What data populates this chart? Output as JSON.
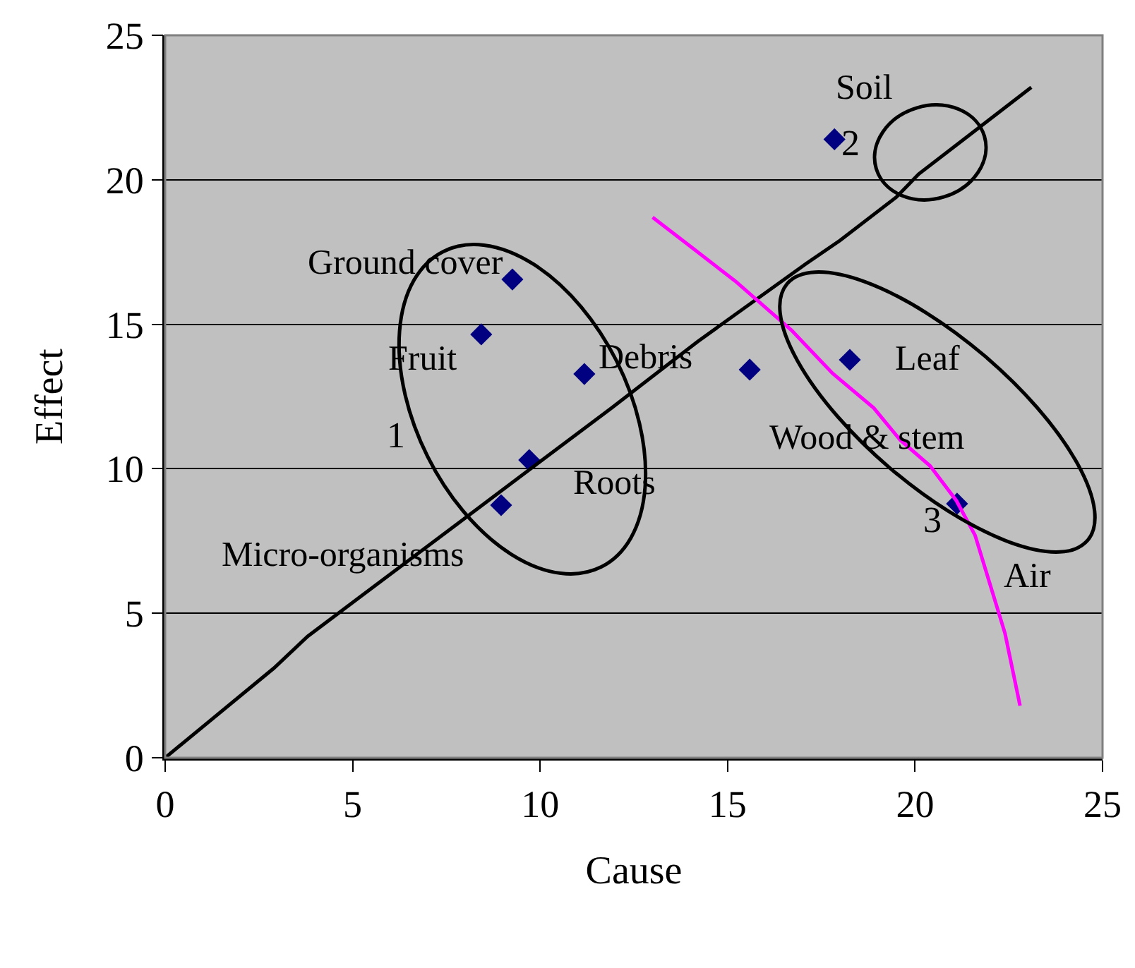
{
  "chart_data": {
    "type": "scatter",
    "xlabel": "Cause",
    "ylabel": "Effect",
    "xlim": [
      0,
      25
    ],
    "ylim": [
      0,
      25
    ],
    "xticks": [
      0,
      5,
      10,
      15,
      20,
      25
    ],
    "yticks": [
      0,
      5,
      10,
      15,
      20,
      25
    ],
    "grid": "y",
    "marker": "diamond",
    "series": [
      {
        "color": "#000080",
        "x": [
          17.85,
          9.26,
          8.43,
          11.18,
          15.59,
          18.26,
          9.71,
          8.96,
          21.12
        ],
        "values": [
          21.4,
          16.55,
          14.65,
          13.28,
          13.43,
          13.77,
          10.3,
          8.74,
          8.79
        ]
      },
      {
        "type": "line",
        "color": "#000000",
        "marker": "none",
        "x": [
          0,
          2.9,
          3.8,
          7.8,
          11.9,
          14.2,
          17.1,
          18,
          19.5,
          20.1,
          21.3,
          23.1
        ],
        "values": [
          0,
          3.1,
          4.2,
          8.1,
          12.1,
          14.4,
          17.1,
          17.9,
          19.4,
          20.2,
          21.4,
          23.2
        ]
      },
      {
        "type": "line",
        "color": "#ff00ff",
        "marker": "none",
        "x": [
          13,
          14.1,
          15.2,
          16.7,
          17.8,
          18.9,
          19.6,
          20.4,
          21.1,
          21.6,
          22,
          22.4,
          22.8
        ],
        "values": [
          18.7,
          17.6,
          16.5,
          14.8,
          13.3,
          12.1,
          11,
          10.1,
          8.9,
          7.7,
          6,
          4.3,
          1.8
        ]
      }
    ],
    "annotations": [
      {
        "text": "Soil",
        "x": 17.85,
        "y": 21.4
      },
      {
        "text": "Ground cover",
        "x": 9.26,
        "y": 16.55
      },
      {
        "text": "Fruit",
        "x": 8.43,
        "y": 14.65
      },
      {
        "text": "Debris",
        "x": 11.18,
        "y": 13.28
      },
      {
        "text": "Wood & stem",
        "x": 15.59,
        "y": 13.43
      },
      {
        "text": "Leaf",
        "x": 18.26,
        "y": 13.77
      },
      {
        "text": "Roots",
        "x": 9.71,
        "y": 10.3
      },
      {
        "text": "Micro-organisms",
        "x": 8.96,
        "y": 8.74
      },
      {
        "text": "Air",
        "x": 21.12,
        "y": 8.79
      },
      "1",
      "2",
      "3"
    ]
  }
}
